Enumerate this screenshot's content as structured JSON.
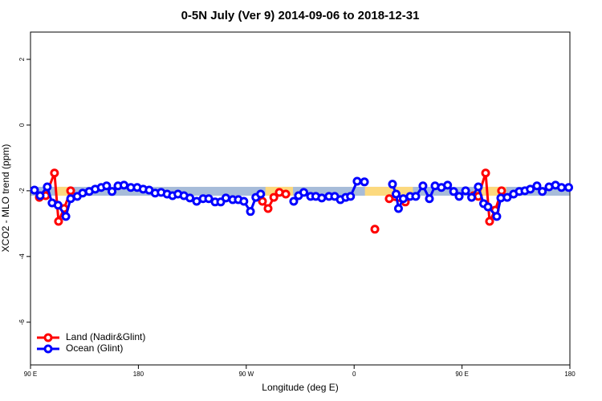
{
  "chart_data": {
    "type": "line",
    "title": "0-5N July (Ver 9)   2014-09-06 to 2018-12-31",
    "xlabel": "Longitude (deg E)",
    "ylabel": "XCO2 - MLO trend (ppm)",
    "xlim": [
      90,
      540
    ],
    "ylim": [
      -7.3,
      2.83
    ],
    "xticks": [
      {
        "value": 90,
        "label": "90 E"
      },
      180,
      {
        "value": 270,
        "label": "90 W"
      },
      {
        "value": 360,
        "label": "0"
      },
      {
        "value": 450,
        "label": "90 E"
      },
      {
        "value": 540,
        "label": "180"
      }
    ],
    "yticks": [
      -6,
      -4,
      -2,
      0,
      2
    ],
    "band": {
      "color": "#a7bcd9",
      "y": [
        -2.15,
        -1.88
      ],
      "land_color": "#fcd97e",
      "land_x": [
        [
          111,
          125
        ],
        [
          286,
          309
        ],
        [
          369,
          409
        ],
        [
          460,
          487
        ]
      ]
    },
    "legend": "bottom-left",
    "series": [
      {
        "name": "Land (Nadir&Glint)",
        "color": "#ff0000",
        "x": [
          97.4,
          102.7,
          110,
          113.4,
          118,
          123.5,
          null,
          283.5,
          288.2,
          293,
          297.6,
          303,
          null,
          377.3,
          null,
          389.3,
          402.7,
          null,
          459.6,
          463.6,
          469.7,
          473,
          477.7,
          483
        ],
        "values": [
          -2.2,
          -2.15,
          -1.46,
          -2.93,
          -2.54,
          -2.0,
          null,
          -2.32,
          -2.54,
          -2.2,
          -2.05,
          -2.1,
          null,
          -3.17,
          null,
          -2.24,
          -2.34,
          null,
          -2.15,
          -2.17,
          -1.46,
          -2.93,
          -2.59,
          -2.0
        ]
      },
      {
        "name": "Ocean (Glint)",
        "color": "#0000ff",
        "x": [
          93.3,
          98,
          104,
          108,
          113,
          119.5,
          123.5,
          129,
          133.5,
          139,
          144,
          149,
          153.5,
          158,
          163,
          168,
          173.7,
          179,
          184,
          189,
          194,
          199,
          204,
          208.5,
          213,
          218,
          223,
          228.6,
          234,
          238.7,
          244,
          248.7,
          253,
          258.7,
          263.4,
          268,
          273.5,
          278,
          282,
          null,
          309.6,
          313.6,
          318,
          323.7,
          328,
          333,
          339,
          343.8,
          348.5,
          353,
          357,
          362.5,
          368.6,
          null,
          392,
          395,
          397,
          401,
          406.7,
          411.4,
          417.4,
          422.8,
          427.5,
          432.8,
          438,
          443,
          447.6,
          453,
          458,
          463.6,
          468,
          471.7,
          479,
          482.4,
          487.7,
          493,
          497.8,
          502.5,
          507,
          512.5,
          517,
          522.6,
          528,
          533,
          539
        ],
        "values": [
          -1.98,
          -2.15,
          -1.88,
          -2.37,
          -2.44,
          -2.78,
          -2.24,
          -2.17,
          -2.07,
          -2.02,
          -1.95,
          -1.9,
          -1.85,
          -2.02,
          -1.85,
          -1.83,
          -1.9,
          -1.9,
          -1.95,
          -1.98,
          -2.07,
          -2.05,
          -2.1,
          -2.15,
          -2.1,
          -2.15,
          -2.22,
          -2.32,
          -2.24,
          -2.24,
          -2.34,
          -2.34,
          -2.22,
          -2.27,
          -2.27,
          -2.32,
          -2.63,
          -2.2,
          -2.1,
          null,
          -2.32,
          -2.15,
          -2.05,
          -2.17,
          -2.17,
          -2.22,
          -2.17,
          -2.17,
          -2.27,
          -2.2,
          -2.17,
          -1.71,
          -1.73,
          null,
          -1.8,
          -2.1,
          -2.54,
          -2.24,
          -2.17,
          -2.17,
          -1.85,
          -2.24,
          -1.85,
          -1.9,
          -1.83,
          -2.02,
          -2.17,
          -2.0,
          -2.2,
          -1.88,
          -2.39,
          -2.49,
          -2.78,
          -2.22,
          -2.2,
          -2.1,
          -2.02,
          -2.0,
          -1.95,
          -1.85,
          -2.02,
          -1.88,
          -1.83,
          -1.9,
          -1.9
        ]
      }
    ]
  }
}
